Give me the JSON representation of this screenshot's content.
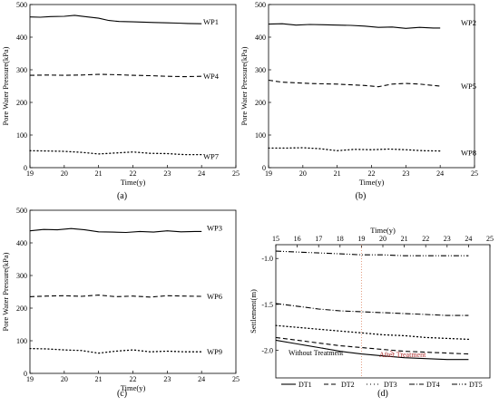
{
  "colors": {
    "axis": "#000000",
    "series": "#000000",
    "divider": "#e09070",
    "annotation_red": "#b03030"
  },
  "chart_data": [
    {
      "panel_label": "(a)",
      "type": "line",
      "xlabel": "Time(y)",
      "ylabel": "Pore Water Pressure(kPa)",
      "xlim": [
        19,
        25
      ],
      "ylim": [
        0,
        500
      ],
      "xticks": [
        "19",
        "20",
        "21",
        "22",
        "23",
        "24",
        "25"
      ],
      "yticks": [
        "0",
        "100",
        "200",
        "300",
        "400",
        "500"
      ],
      "grid": false,
      "series": [
        {
          "name": "WP1",
          "style": "solid",
          "x": [
            19.0,
            19.3,
            19.6,
            20.0,
            20.3,
            20.6,
            21.0,
            21.3,
            21.6,
            22.0,
            22.3,
            22.6,
            23.0,
            23.3,
            23.6,
            24.0
          ],
          "y": [
            462,
            461,
            463,
            464,
            467,
            463,
            458,
            451,
            448,
            447,
            446,
            445,
            444,
            443,
            442,
            441
          ]
        },
        {
          "name": "WP4",
          "style": "dash",
          "x": [
            19.0,
            19.5,
            20.0,
            20.5,
            21.0,
            21.5,
            22.0,
            22.5,
            23.0,
            23.5,
            24.0
          ],
          "y": [
            283,
            284,
            283,
            284,
            286,
            285,
            283,
            282,
            280,
            279,
            280
          ]
        },
        {
          "name": "WP7",
          "style": "dot",
          "x": [
            19.0,
            19.5,
            20.0,
            20.5,
            21.0,
            21.5,
            22.0,
            22.5,
            23.0,
            23.5,
            24.0
          ],
          "y": [
            52,
            51,
            50,
            47,
            42,
            45,
            48,
            44,
            43,
            40,
            40
          ]
        }
      ]
    },
    {
      "panel_label": "(b)",
      "type": "line",
      "xlabel": "Time(y)",
      "ylabel": "Pore Water Pressure(kPa)",
      "xlim": [
        19,
        25
      ],
      "ylim": [
        0,
        500
      ],
      "xticks": [
        "19",
        "20",
        "21",
        "22",
        "23",
        "24",
        "25"
      ],
      "yticks": [
        "0",
        "100",
        "200",
        "300",
        "400",
        "500"
      ],
      "grid": false,
      "series": [
        {
          "name": "WP2",
          "style": "solid",
          "x": [
            19.0,
            19.4,
            19.8,
            20.2,
            20.6,
            21.0,
            21.4,
            21.8,
            22.2,
            22.6,
            23.0,
            23.4,
            23.8,
            24.0
          ],
          "y": [
            440,
            441,
            437,
            439,
            438,
            437,
            436,
            434,
            430,
            431,
            427,
            430,
            428,
            428
          ]
        },
        {
          "name": "WP5",
          "style": "dash",
          "x": [
            19.0,
            19.4,
            19.8,
            20.2,
            20.6,
            21.0,
            21.4,
            21.8,
            22.2,
            22.6,
            23.0,
            23.4,
            23.8,
            24.0
          ],
          "y": [
            268,
            262,
            260,
            258,
            257,
            256,
            254,
            252,
            248,
            256,
            258,
            256,
            252,
            250
          ]
        },
        {
          "name": "WP8",
          "style": "dot",
          "x": [
            19.0,
            19.5,
            20.0,
            20.5,
            21.0,
            21.5,
            22.0,
            22.5,
            23.0,
            23.5,
            24.0
          ],
          "y": [
            60,
            60,
            61,
            58,
            52,
            56,
            55,
            57,
            55,
            52,
            51
          ]
        }
      ]
    },
    {
      "panel_label": "(c)",
      "type": "line",
      "xlabel": "Time(y)",
      "ylabel": "Pore Water Pressure(kPa)",
      "xlim": [
        19,
        25
      ],
      "ylim": [
        0,
        500
      ],
      "xticks": [
        "19",
        "20",
        "21",
        "22",
        "23",
        "24",
        "25"
      ],
      "yticks": [
        "0",
        "100",
        "200",
        "300",
        "400",
        "500"
      ],
      "grid": false,
      "series": [
        {
          "name": "WP3",
          "style": "solid",
          "x": [
            19.0,
            19.4,
            19.8,
            20.2,
            20.6,
            21.0,
            21.4,
            21.8,
            22.2,
            22.6,
            23.0,
            23.4,
            23.8,
            24.0
          ],
          "y": [
            437,
            441,
            440,
            444,
            440,
            434,
            433,
            432,
            435,
            433,
            437,
            434,
            435,
            435
          ]
        },
        {
          "name": "WP6",
          "style": "dash",
          "x": [
            19.0,
            19.5,
            20.0,
            20.5,
            21.0,
            21.5,
            22.0,
            22.5,
            23.0,
            23.5,
            24.0
          ],
          "y": [
            235,
            237,
            238,
            236,
            240,
            235,
            237,
            234,
            238,
            237,
            236
          ]
        },
        {
          "name": "WP9",
          "style": "dot",
          "x": [
            19.0,
            19.5,
            20.0,
            20.5,
            21.0,
            21.5,
            22.0,
            22.5,
            23.0,
            23.5,
            24.0
          ],
          "y": [
            76,
            75,
            72,
            70,
            62,
            68,
            72,
            66,
            68,
            66,
            66
          ]
        }
      ]
    },
    {
      "panel_label": "(d)",
      "type": "line",
      "xlabel": "Time(y)",
      "ylabel": "Settlement(m)",
      "xlim": [
        15,
        25
      ],
      "ylim": [
        -2.3,
        -0.85
      ],
      "xaxis_position": "top",
      "xticks": [
        "15",
        "16",
        "17",
        "18",
        "19",
        "20",
        "21",
        "22",
        "23",
        "24",
        "25"
      ],
      "yticks": [
        "-1.0",
        "-1.5",
        "-2.0"
      ],
      "grid": false,
      "legend_position": "bottom",
      "divider_x": 19,
      "annotations": [
        "Without Treatment",
        "After Treatment"
      ],
      "series": [
        {
          "name": "DT1",
          "style": "solid",
          "x": [
            15,
            16,
            17,
            18,
            19,
            20,
            21,
            22,
            23,
            24
          ],
          "y": [
            -1.89,
            -1.93,
            -1.97,
            -2.01,
            -2.04,
            -2.06,
            -2.08,
            -2.09,
            -2.1,
            -2.1
          ]
        },
        {
          "name": "DT2",
          "style": "dash",
          "x": [
            15,
            16,
            17,
            18,
            19,
            20,
            21,
            22,
            23,
            24
          ],
          "y": [
            -1.86,
            -1.89,
            -1.92,
            -1.95,
            -1.97,
            -1.99,
            -2.01,
            -2.02,
            -2.03,
            -2.04
          ]
        },
        {
          "name": "DT3",
          "style": "dot",
          "x": [
            15,
            16,
            17,
            18,
            19,
            20,
            21,
            22,
            23,
            24
          ],
          "y": [
            -1.73,
            -1.75,
            -1.77,
            -1.79,
            -1.81,
            -1.83,
            -1.84,
            -1.86,
            -1.87,
            -1.88
          ]
        },
        {
          "name": "DT4",
          "style": "dashdot",
          "x": [
            15,
            16,
            17,
            18,
            19,
            20,
            21,
            22,
            23,
            24
          ],
          "y": [
            -1.49,
            -1.52,
            -1.55,
            -1.57,
            -1.58,
            -1.59,
            -1.6,
            -1.61,
            -1.62,
            -1.62
          ]
        },
        {
          "name": "DT5",
          "style": "dashdotdot",
          "x": [
            15,
            16,
            17,
            18,
            19,
            20,
            21,
            22,
            23,
            24
          ],
          "y": [
            -0.92,
            -0.93,
            -0.94,
            -0.95,
            -0.96,
            -0.96,
            -0.97,
            -0.97,
            -0.97,
            -0.97
          ]
        }
      ]
    }
  ]
}
